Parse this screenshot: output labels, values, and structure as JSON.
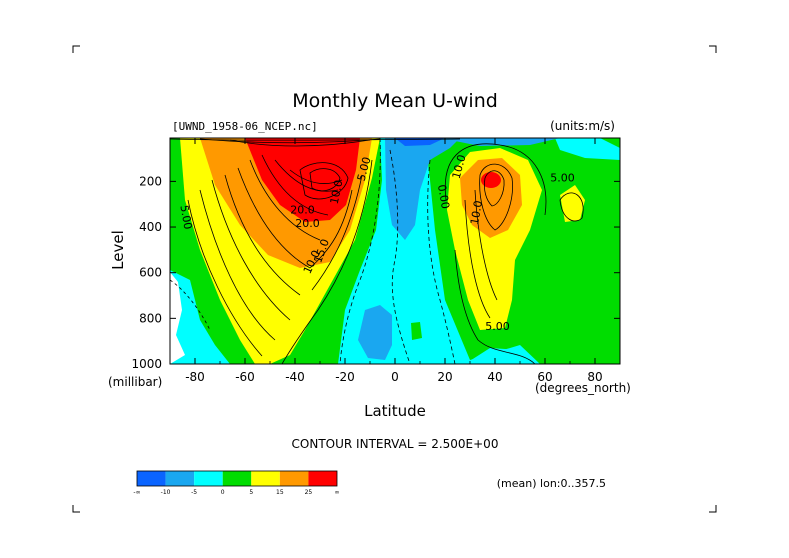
{
  "chart_data": {
    "type": "heatmap",
    "title": "Monthly Mean U-wind",
    "dataset_label": "[UWND_1958-06_NCEP.nc]",
    "units_label": "(units:m/s)",
    "xlabel": "Latitude",
    "x_units": "(degrees_north)",
    "ylabel": "Level",
    "y_units": "(millibar)",
    "xlim": [
      -90,
      90
    ],
    "ylim": [
      1000,
      10
    ],
    "x_ticks": [
      -80,
      -60,
      -40,
      -20,
      0,
      20,
      40,
      60,
      80
    ],
    "y_ticks": [
      200,
      400,
      600,
      800,
      1000
    ],
    "contour_interval_text": "CONTOUR INTERVAL = 2.500E+00",
    "footnote": "(mean) lon:0..357.5",
    "colorbar": {
      "colors": [
        "#0a64ff",
        "#1aa7f0",
        "#00ffff",
        "#00dd00",
        "#ffff00",
        "#ff9900",
        "#ff0000"
      ],
      "tick_labels": [
        "-∞",
        "-10",
        "-5",
        "0",
        "5",
        "15",
        "25",
        "∞"
      ],
      "boundaries": [
        -10,
        -5,
        0,
        5,
        15,
        25
      ]
    },
    "contour_labels": [
      {
        "text": "5.00",
        "lat": -85,
        "p": 360,
        "rot": 80
      },
      {
        "text": "10.0",
        "lat": -22,
        "p": 250,
        "rot": -78
      },
      {
        "text": "15.0",
        "lat": -28,
        "p": 510,
        "rot": -70
      },
      {
        "text": "10.0",
        "lat": -32,
        "p": 560,
        "rot": -65
      },
      {
        "text": "20.0",
        "lat": -35,
        "p": 400,
        "rot": 0
      },
      {
        "text": "20.0",
        "lat": -37,
        "p": 340,
        "rot": 0
      },
      {
        "text": "5.00",
        "lat": -11,
        "p": 150,
        "rot": -75
      },
      {
        "text": "0.00",
        "lat": 18,
        "p": 270,
        "rot": 80
      },
      {
        "text": "10.0",
        "lat": 27,
        "p": 140,
        "rot": -75
      },
      {
        "text": "10.0",
        "lat": 34,
        "p": 340,
        "rot": -80
      },
      {
        "text": "5.00",
        "lat": 67,
        "p": 200,
        "rot": 0
      },
      {
        "text": "5.00",
        "lat": 41,
        "p": 850,
        "rot": 0
      }
    ]
  }
}
